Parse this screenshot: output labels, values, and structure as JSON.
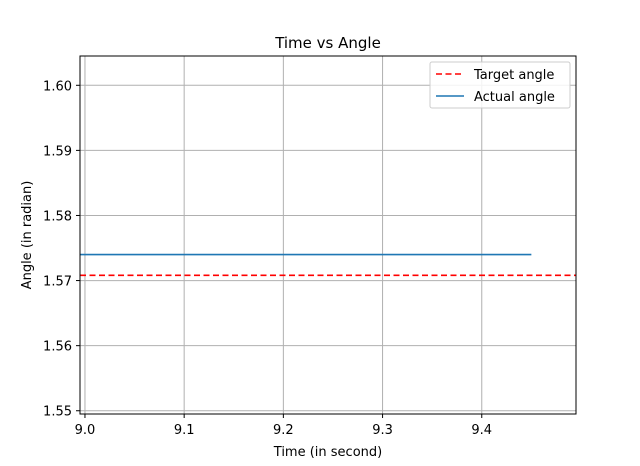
{
  "chart_data": {
    "type": "line",
    "title": "Time vs Angle",
    "xlabel": "Time (in second)",
    "ylabel": "Angle (in radian)",
    "xlim": [
      8.995,
      9.495
    ],
    "ylim": [
      1.5495,
      1.6045
    ],
    "xticks": [
      9.0,
      9.1,
      9.2,
      9.3,
      9.4
    ],
    "xtick_labels": [
      "9.0",
      "9.1",
      "9.2",
      "9.3",
      "9.4"
    ],
    "yticks": [
      1.55,
      1.56,
      1.57,
      1.58,
      1.59,
      1.6
    ],
    "ytick_labels": [
      "1.55",
      "1.56",
      "1.57",
      "1.58",
      "1.59",
      "1.60"
    ],
    "grid": true,
    "legend_position": "top-right",
    "series": [
      {
        "name": "Target angle",
        "color": "#ff0000",
        "style": "dashed",
        "x": [
          8.995,
          9.495
        ],
        "y": [
          1.5708,
          1.5708
        ]
      },
      {
        "name": "Actual angle",
        "color": "#1f77b4",
        "style": "solid",
        "x": [
          8.995,
          9.45
        ],
        "y": [
          1.574,
          1.574
        ]
      }
    ]
  }
}
